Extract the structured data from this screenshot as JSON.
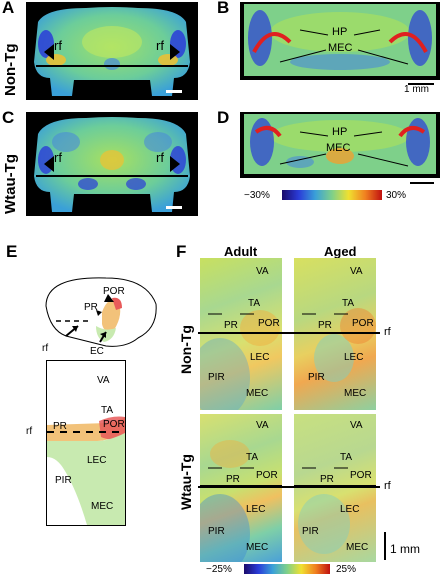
{
  "panel_labels": {
    "A": "A",
    "B": "B",
    "C": "C",
    "D": "D",
    "E": "E",
    "F": "F"
  },
  "rows": {
    "top": "Non-Tg",
    "bottom": "Wtau-Tg"
  },
  "panel_F": {
    "col_adult": "Adult",
    "col_aged": "Aged",
    "row_nontg": "Non-Tg",
    "row_wtautg": "Wtau-Tg",
    "regions": [
      "VA",
      "TA",
      "POR",
      "PR",
      "LEC",
      "PIR",
      "MEC"
    ],
    "rf": "rf",
    "scale": "1 mm",
    "colorbar_min": "−25%",
    "colorbar_max": "25%"
  },
  "panel_AC": {
    "rf": "rf"
  },
  "panel_BD": {
    "hp": "HP",
    "mec": "MEC",
    "scale": "1 mm",
    "colorbar_min": "−30%",
    "colorbar_max": "30%"
  },
  "panel_E": {
    "brain_labels": {
      "por": "POR",
      "pr": "PR",
      "rf": "rf",
      "ec": "EC"
    },
    "map_labels": {
      "va": "VA",
      "ta": "TA",
      "pr": "PR",
      "por": "POR",
      "lec": "LEC",
      "pir": "PIR",
      "mec": "MEC",
      "rf": "rf"
    }
  },
  "colors": {
    "cold": "#2a3cd8",
    "neutral": "#7ed08a",
    "warm": "#f0e030",
    "hot": "#e02020",
    "pr_fill": "#f2c27a",
    "lec_fill": "#c8eab0",
    "por_fill": "#e85a5a"
  }
}
